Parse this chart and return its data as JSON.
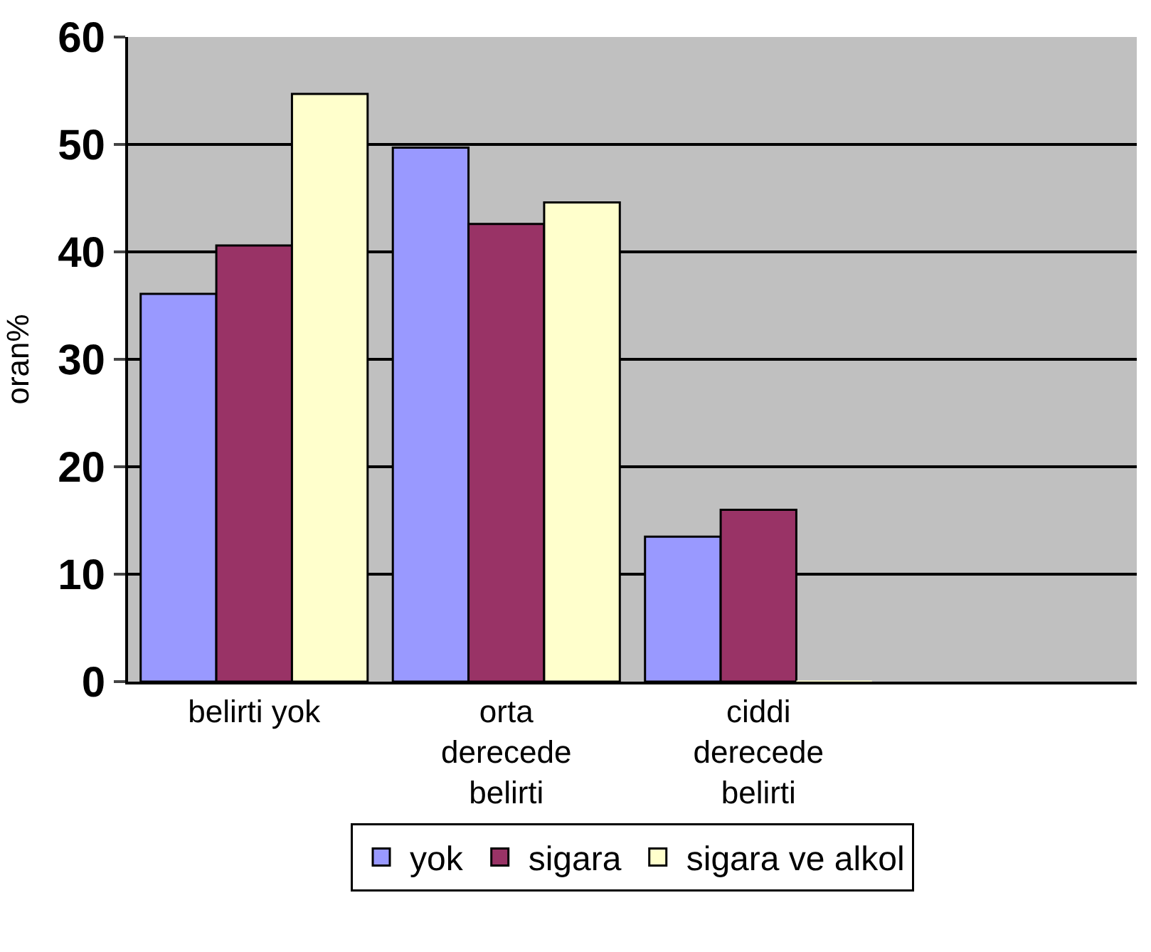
{
  "chart_data": {
    "type": "bar",
    "ylabel": "oran%",
    "categories": [
      "belirti yok",
      "orta derecede belirti",
      "ciddi derecede belirti",
      null
    ],
    "series": [
      {
        "name": "yok",
        "color": "#9999ff",
        "values": [
          36.1,
          49.7,
          13.5,
          null
        ]
      },
      {
        "name": "sigara",
        "color": "#993366",
        "values": [
          40.6,
          42.6,
          16.0,
          null
        ]
      },
      {
        "name": "sigara ve alkol",
        "color": "#ffffcc",
        "values": [
          54.7,
          44.6,
          0,
          null
        ]
      }
    ],
    "ylim": [
      0,
      60
    ],
    "yticks": [
      0,
      10,
      20,
      30,
      40,
      50,
      60
    ],
    "grid": "y",
    "legend": "bottom"
  }
}
